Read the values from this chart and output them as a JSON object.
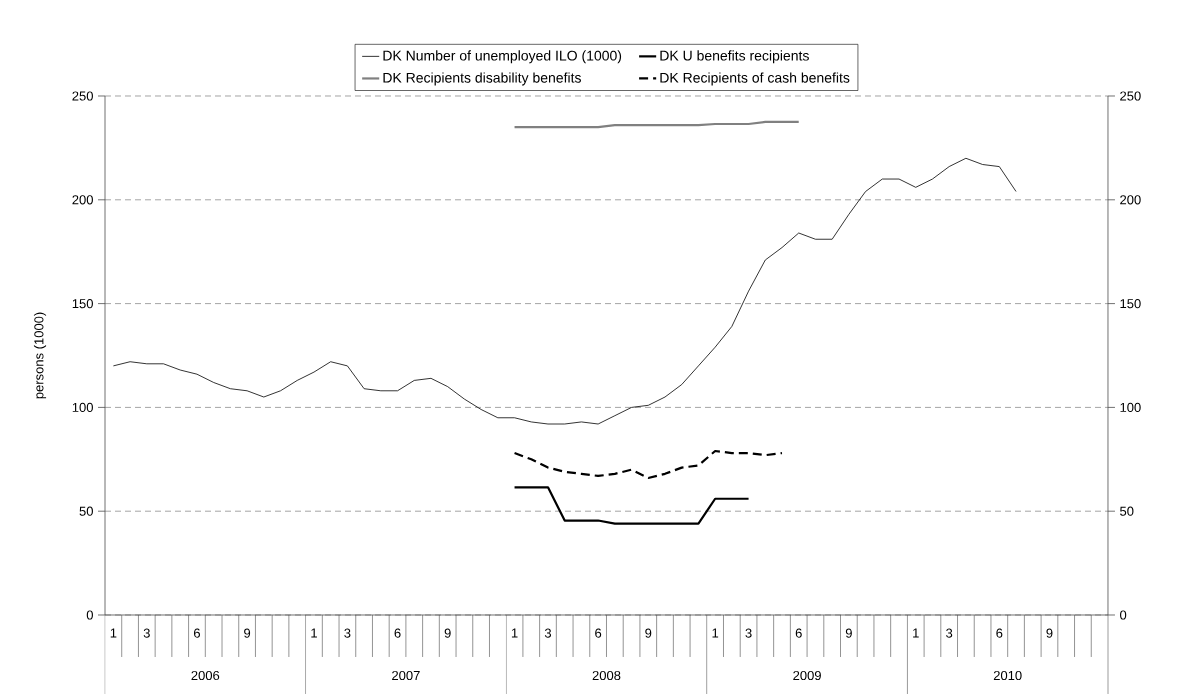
{
  "chart_data": {
    "type": "line",
    "ylabel": "persons (1000)",
    "categories": [
      "1",
      null,
      "3",
      null,
      null,
      "6",
      null,
      null,
      "9",
      null,
      null,
      null,
      "1",
      null,
      "3",
      null,
      null,
      "6",
      null,
      null,
      "9",
      null,
      null,
      null,
      "1",
      null,
      "3",
      null,
      null,
      "6",
      null,
      null,
      "9",
      null,
      null,
      null,
      "1",
      null,
      "3",
      null,
      null,
      "6",
      null,
      null,
      "9",
      null,
      null,
      null,
      "1",
      null,
      "3",
      null,
      null,
      "6",
      null,
      null,
      "9",
      null,
      null,
      null
    ],
    "annotations": [
      "2006",
      "2007",
      "2008",
      "2009",
      "2010"
    ],
    "series": [
      {
        "name": "DK Number of unemployed ILO (1000)",
        "color": "#000000",
        "line_style": "solid",
        "values": [
          120,
          122,
          121,
          121,
          118,
          116,
          112,
          109,
          108,
          105,
          108,
          113,
          117,
          122,
          120,
          109,
          108,
          108,
          113,
          114,
          110,
          104,
          99,
          95,
          95,
          93,
          92,
          92,
          93,
          92,
          96,
          100,
          101,
          105,
          111,
          120,
          129,
          139,
          156,
          171,
          177,
          184,
          181,
          181,
          193,
          204,
          210,
          210,
          206,
          210,
          216,
          220,
          217,
          216,
          204,
          null,
          null,
          null,
          null,
          null
        ]
      },
      {
        "name": "DK U benefits recipients",
        "color": "#000000",
        "line_style": "solid",
        "values": [
          null,
          null,
          null,
          null,
          null,
          null,
          null,
          null,
          null,
          null,
          null,
          null,
          null,
          null,
          null,
          null,
          null,
          null,
          null,
          null,
          null,
          null,
          null,
          null,
          61.5,
          61.5,
          61.5,
          45.5,
          45.5,
          45.5,
          44,
          44,
          44,
          44,
          44,
          44,
          56,
          56,
          56,
          null,
          null,
          null,
          null,
          null,
          null,
          null,
          null,
          null,
          null,
          null,
          null,
          null,
          null,
          null,
          null,
          null,
          null,
          null,
          null,
          null
        ]
      },
      {
        "name": "DK Recipients disability benefits",
        "color": "#808080",
        "line_style": "solid",
        "values": [
          null,
          null,
          null,
          null,
          null,
          null,
          null,
          null,
          null,
          null,
          null,
          null,
          null,
          null,
          null,
          null,
          null,
          null,
          null,
          null,
          null,
          null,
          null,
          null,
          235,
          235,
          235,
          235,
          235,
          235,
          236,
          236,
          236,
          236,
          236,
          236,
          236.5,
          236.5,
          236.5,
          237.5,
          237.5,
          237.5,
          null,
          null,
          null,
          null,
          null,
          null,
          null,
          null,
          null,
          null,
          null,
          null,
          null,
          null,
          null,
          null,
          null,
          null
        ]
      },
      {
        "name": "DK Recipients of cash benefits",
        "color": "#000000",
        "line_style": "dashed",
        "values": [
          null,
          null,
          null,
          null,
          null,
          null,
          null,
          null,
          null,
          null,
          null,
          null,
          null,
          null,
          null,
          null,
          null,
          null,
          null,
          null,
          null,
          null,
          null,
          null,
          78,
          75,
          71,
          69,
          68,
          67,
          68,
          70,
          66,
          68,
          71,
          72,
          79,
          78,
          78,
          77,
          78,
          null,
          null,
          null,
          null,
          null,
          null,
          null,
          null,
          null,
          null,
          null,
          null,
          null,
          null,
          null,
          null,
          null,
          null,
          null
        ]
      }
    ],
    "ylim": [
      0,
      250
    ],
    "yticks": [
      0,
      50,
      100,
      150,
      200,
      250
    ],
    "y2lim": [
      0,
      250
    ],
    "y2ticks": [
      0,
      50,
      100,
      150,
      200,
      250
    ],
    "grid": "y",
    "legend": "top",
    "marker": "none"
  }
}
